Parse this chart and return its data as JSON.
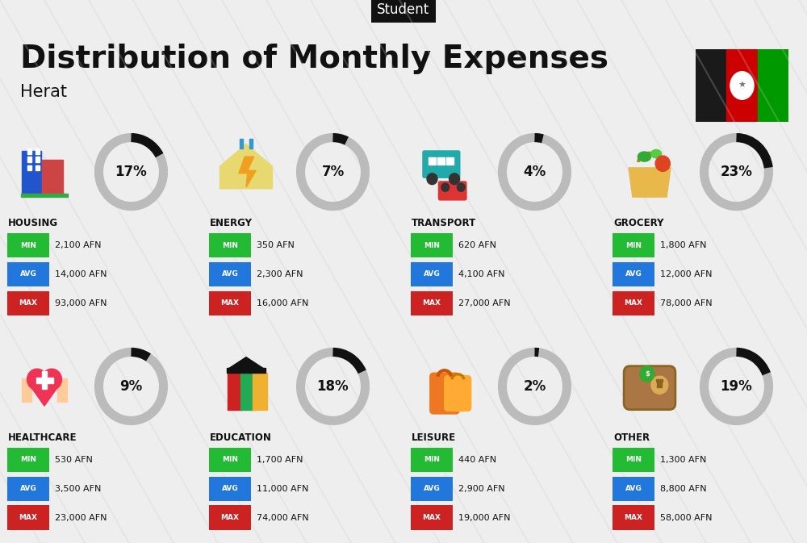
{
  "title": "Distribution of Monthly Expenses",
  "subtitle": "Herat",
  "header_label": "Student",
  "bg_color": "#eeeeee",
  "categories": [
    {
      "name": "HOUSING",
      "percent": 17,
      "min": "2,100 AFN",
      "avg": "14,000 AFN",
      "max": "93,000 AFN",
      "icon": "housing",
      "row": 0,
      "col": 0
    },
    {
      "name": "ENERGY",
      "percent": 7,
      "min": "350 AFN",
      "avg": "2,300 AFN",
      "max": "16,000 AFN",
      "icon": "energy",
      "row": 0,
      "col": 1
    },
    {
      "name": "TRANSPORT",
      "percent": 4,
      "min": "620 AFN",
      "avg": "4,100 AFN",
      "max": "27,000 AFN",
      "icon": "transport",
      "row": 0,
      "col": 2
    },
    {
      "name": "GROCERY",
      "percent": 23,
      "min": "1,800 AFN",
      "avg": "12,000 AFN",
      "max": "78,000 AFN",
      "icon": "grocery",
      "row": 0,
      "col": 3
    },
    {
      "name": "HEALTHCARE",
      "percent": 9,
      "min": "530 AFN",
      "avg": "3,500 AFN",
      "max": "23,000 AFN",
      "icon": "healthcare",
      "row": 1,
      "col": 0
    },
    {
      "name": "EDUCATION",
      "percent": 18,
      "min": "1,700 AFN",
      "avg": "11,000 AFN",
      "max": "74,000 AFN",
      "icon": "education",
      "row": 1,
      "col": 1
    },
    {
      "name": "LEISURE",
      "percent": 2,
      "min": "440 AFN",
      "avg": "2,900 AFN",
      "max": "19,000 AFN",
      "icon": "leisure",
      "row": 1,
      "col": 2
    },
    {
      "name": "OTHER",
      "percent": 19,
      "min": "1,300 AFN",
      "avg": "8,800 AFN",
      "max": "58,000 AFN",
      "icon": "other",
      "row": 1,
      "col": 3
    }
  ],
  "min_color": "#22bb33",
  "avg_color": "#2277dd",
  "max_color": "#cc2222",
  "ring_color_filled": "#111111",
  "ring_color_empty": "#bbbbbb",
  "title_fontsize": 28,
  "subtitle_fontsize": 15,
  "header_fontsize": 12
}
